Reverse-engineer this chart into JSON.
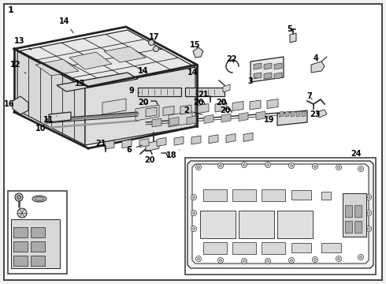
{
  "bg_color": "#f2f2f2",
  "border_color": "#444444",
  "line_color": "#222222",
  "fill_light": "#e8e8e8",
  "fill_mid": "#d8d8d8",
  "fill_dark": "#c8c8c8",
  "fig_width": 4.9,
  "fig_height": 3.6,
  "dpi": 100,
  "fs_label": 7.0
}
